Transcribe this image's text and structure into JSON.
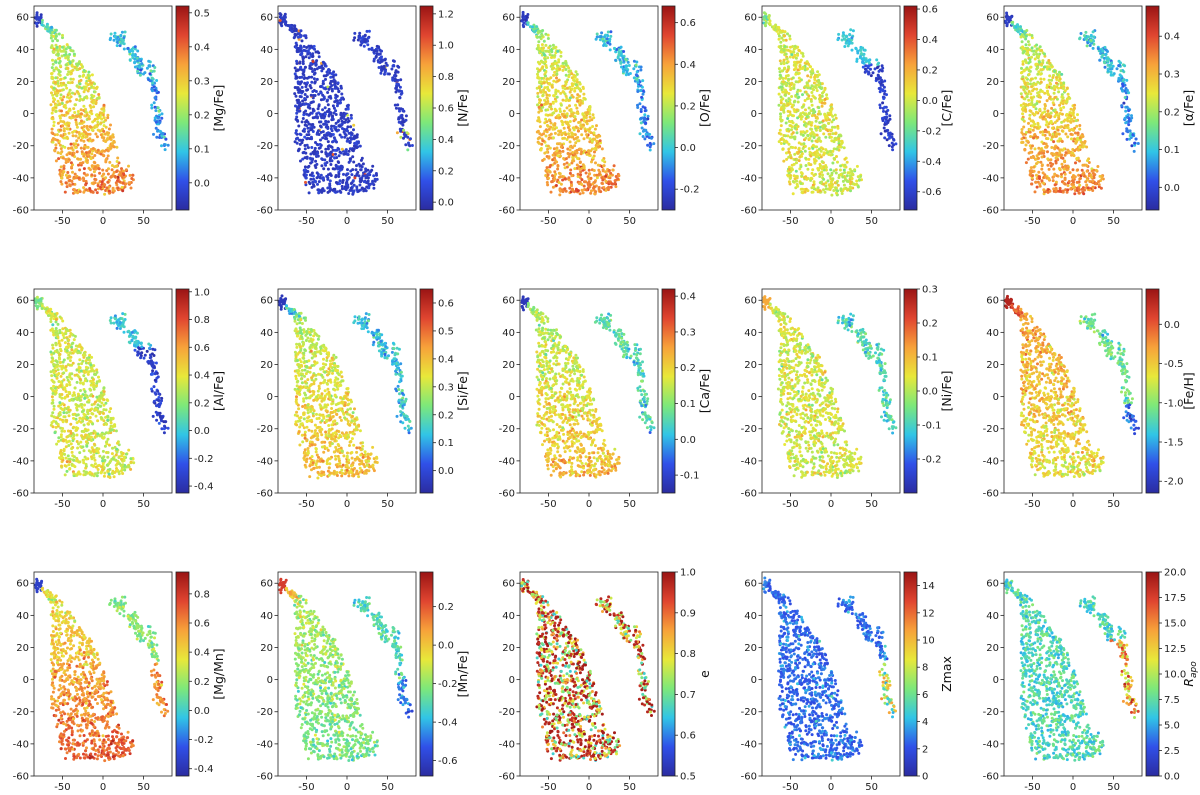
{
  "figure": {
    "layout": "3 rows x 5 columns grid of t-SNE style scatter maps, each colored by a quantity",
    "colormap": "jet",
    "colormap_stops": [
      "#2b2ca0",
      "#3050e8",
      "#31c5e6",
      "#7de87a",
      "#e8e83a",
      "#f7a23a",
      "#e04530",
      "#9a1414"
    ]
  },
  "chart_data": [
    {
      "type": "scatter",
      "colorbar_label": "[Mg/Fe]",
      "clim": [
        -0.08,
        0.52
      ],
      "cb_ticks": [
        "0.0",
        "0.1",
        "0.2",
        "0.3",
        "0.4",
        "0.5"
      ],
      "cb_tick_values": [
        0,
        0.1,
        0.2,
        0.3,
        0.4,
        0.5
      ],
      "pattern": "south",
      "xlim": [
        -85,
        85
      ],
      "ylim": [
        -60,
        67
      ],
      "xticks": [
        "-50",
        "0",
        "50"
      ],
      "yticks": [
        "-60",
        "-40",
        "-20",
        "0",
        "20",
        "40",
        "60"
      ]
    },
    {
      "type": "scatter",
      "colorbar_label": "[N/Fe]",
      "clim": [
        -0.05,
        1.25
      ],
      "cb_ticks": [
        "0.0",
        "0.2",
        "0.4",
        "0.6",
        "0.8",
        "1.0",
        "1.2"
      ],
      "cb_tick_values": [
        0,
        0.2,
        0.4,
        0.6,
        0.8,
        1.0,
        1.2
      ],
      "pattern": "low",
      "xlim": [
        -85,
        85
      ],
      "ylim": [
        -60,
        67
      ],
      "xticks": [
        "-50",
        "0",
        "50"
      ],
      "yticks": [
        "-60",
        "-40",
        "-20",
        "0",
        "20",
        "40",
        "60"
      ]
    },
    {
      "type": "scatter",
      "colorbar_label": "[O/Fe]",
      "clim": [
        -0.3,
        0.68
      ],
      "cb_ticks": [
        "-0.2",
        "0.0",
        "0.2",
        "0.4",
        "0.6"
      ],
      "cb_tick_values": [
        -0.2,
        0,
        0.2,
        0.4,
        0.6
      ],
      "pattern": "south",
      "xlim": [
        -85,
        85
      ],
      "ylim": [
        -60,
        67
      ],
      "xticks": [
        "-50",
        "0",
        "50"
      ],
      "yticks": [
        "-60",
        "-40",
        "-20",
        "0",
        "20",
        "40",
        "60"
      ]
    },
    {
      "type": "scatter",
      "colorbar_label": "[C/Fe]",
      "clim": [
        -0.72,
        0.62
      ],
      "cb_ticks": [
        "-0.6",
        "-0.4",
        "-0.2",
        "0.0",
        "0.2",
        "0.4",
        "0.6"
      ],
      "cb_tick_values": [
        -0.6,
        -0.4,
        -0.2,
        0,
        0.2,
        0.4,
        0.6
      ],
      "pattern": "mid",
      "xlim": [
        -85,
        85
      ],
      "ylim": [
        -60,
        67
      ],
      "xticks": [
        "-50",
        "0",
        "50"
      ],
      "yticks": [
        "-60",
        "-40",
        "-20",
        "0",
        "20",
        "40",
        "60"
      ]
    },
    {
      "type": "scatter",
      "colorbar_label": "[α/Fe]",
      "clim": [
        -0.06,
        0.48
      ],
      "cb_ticks": [
        "0.0",
        "0.1",
        "0.2",
        "0.3",
        "0.4"
      ],
      "cb_tick_values": [
        0,
        0.1,
        0.2,
        0.3,
        0.4
      ],
      "pattern": "south",
      "xlim": [
        -85,
        85
      ],
      "ylim": [
        -60,
        67
      ],
      "xticks": [
        "-50",
        "0",
        "50"
      ],
      "yticks": [
        "-60",
        "-40",
        "-20",
        "0",
        "20",
        "40",
        "60"
      ]
    },
    {
      "type": "scatter",
      "colorbar_label": "[Al/Fe]",
      "clim": [
        -0.45,
        1.02
      ],
      "cb_ticks": [
        "-0.4",
        "-0.2",
        "0.0",
        "0.2",
        "0.4",
        "0.6",
        "0.8",
        "1.0"
      ],
      "cb_tick_values": [
        -0.4,
        -0.2,
        0,
        0.2,
        0.4,
        0.6,
        0.8,
        1.0
      ],
      "pattern": "mid",
      "xlim": [
        -85,
        85
      ],
      "ylim": [
        -60,
        67
      ],
      "xticks": [
        "-50",
        "0",
        "50"
      ],
      "yticks": [
        "-60",
        "-40",
        "-20",
        "0",
        "20",
        "40",
        "60"
      ]
    },
    {
      "type": "scatter",
      "colorbar_label": "[Si/Fe]",
      "clim": [
        -0.08,
        0.65
      ],
      "cb_ticks": [
        "0.0",
        "0.1",
        "0.2",
        "0.3",
        "0.4",
        "0.5",
        "0.6"
      ],
      "cb_tick_values": [
        0,
        0.1,
        0.2,
        0.3,
        0.4,
        0.5,
        0.6
      ],
      "pattern": "midlow",
      "xlim": [
        -85,
        85
      ],
      "ylim": [
        -60,
        67
      ],
      "xticks": [
        "-50",
        "0",
        "50"
      ],
      "yticks": [
        "-60",
        "-40",
        "-20",
        "0",
        "20",
        "40",
        "60"
      ]
    },
    {
      "type": "scatter",
      "colorbar_label": "[Ca/Fe]",
      "clim": [
        -0.15,
        0.42
      ],
      "cb_ticks": [
        "-0.1",
        "0.0",
        "0.1",
        "0.2",
        "0.3",
        "0.4"
      ],
      "cb_tick_values": [
        -0.1,
        0,
        0.1,
        0.2,
        0.3,
        0.4
      ],
      "pattern": "midsouth",
      "xlim": [
        -85,
        85
      ],
      "ylim": [
        -60,
        67
      ],
      "xticks": [
        "-50",
        "0",
        "50"
      ],
      "yticks": [
        "-60",
        "-40",
        "-20",
        "0",
        "20",
        "40",
        "60"
      ]
    },
    {
      "type": "scatter",
      "colorbar_label": "[Ni/Fe]",
      "clim": [
        -0.3,
        0.3
      ],
      "cb_ticks": [
        "-0.2",
        "-0.1",
        "0.0",
        "0.1",
        "0.2",
        "0.3"
      ],
      "cb_tick_values": [
        -0.2,
        -0.1,
        0,
        0.1,
        0.2,
        0.3
      ],
      "pattern": "ni",
      "xlim": [
        -85,
        85
      ],
      "ylim": [
        -60,
        67
      ],
      "xticks": [
        "-50",
        "0",
        "50"
      ],
      "yticks": [
        "-60",
        "-40",
        "-20",
        "0",
        "20",
        "40",
        "60"
      ]
    },
    {
      "type": "scatter",
      "colorbar_label": "[Fe/H]",
      "clim": [
        -2.15,
        0.45
      ],
      "cb_ticks": [
        "-2.0",
        "-1.5",
        "-1.0",
        "-0.5",
        "0.0"
      ],
      "cb_tick_values": [
        -2.0,
        -1.5,
        -1.0,
        -0.5,
        0
      ],
      "pattern": "feh",
      "xlim": [
        -85,
        85
      ],
      "ylim": [
        -60,
        67
      ],
      "xticks": [
        "-50",
        "0",
        "50"
      ],
      "yticks": [
        "-60",
        "-40",
        "-20",
        "0",
        "20",
        "40",
        "60"
      ]
    },
    {
      "type": "scatter",
      "colorbar_label": "[Mg/Mn]",
      "clim": [
        -0.45,
        0.95
      ],
      "cb_ticks": [
        "-0.4",
        "-0.2",
        "0.0",
        "0.2",
        "0.4",
        "0.6",
        "0.8"
      ],
      "cb_tick_values": [
        -0.4,
        -0.2,
        0,
        0.2,
        0.4,
        0.6,
        0.8
      ],
      "pattern": "mgmn",
      "xlim": [
        -85,
        85
      ],
      "ylim": [
        -60,
        67
      ],
      "xticks": [
        "-50",
        "0",
        "50"
      ],
      "yticks": [
        "-60",
        "-40",
        "-20",
        "0",
        "20",
        "40",
        "60"
      ]
    },
    {
      "type": "scatter",
      "colorbar_label": "[Mn/Fe]",
      "clim": [
        -0.68,
        0.38
      ],
      "cb_ticks": [
        "-0.6",
        "-0.4",
        "-0.2",
        "0.0",
        "0.2"
      ],
      "cb_tick_values": [
        -0.6,
        -0.4,
        -0.2,
        0,
        0.2
      ],
      "pattern": "mnfe",
      "xlim": [
        -85,
        85
      ],
      "ylim": [
        -60,
        67
      ],
      "xticks": [
        "-50",
        "0",
        "50"
      ],
      "yticks": [
        "-60",
        "-40",
        "-20",
        "0",
        "20",
        "40",
        "60"
      ]
    },
    {
      "type": "scatter",
      "colorbar_label": "e",
      "clim": [
        0.5,
        1.0
      ],
      "cb_ticks": [
        "0.5",
        "0.6",
        "0.7",
        "0.8",
        "0.9",
        "1.0"
      ],
      "cb_tick_values": [
        0.5,
        0.6,
        0.7,
        0.8,
        0.9,
        1.0
      ],
      "pattern": "ecc",
      "xlim": [
        -85,
        85
      ],
      "ylim": [
        -60,
        67
      ],
      "xticks": [
        "-50",
        "0",
        "50"
      ],
      "yticks": [
        "-60",
        "-40",
        "-20",
        "0",
        "20",
        "40",
        "60"
      ]
    },
    {
      "type": "scatter",
      "colorbar_label": "Zmax",
      "clim": [
        0,
        15
      ],
      "cb_ticks": [
        "0",
        "2",
        "4",
        "6",
        "8",
        "10",
        "12",
        "14"
      ],
      "cb_tick_values": [
        0,
        2,
        4,
        6,
        8,
        10,
        12,
        14
      ],
      "pattern": "zmax",
      "xlim": [
        -85,
        85
      ],
      "ylim": [
        -60,
        67
      ],
      "xticks": [
        "-50",
        "0",
        "50"
      ],
      "yticks": [
        "-60",
        "-40",
        "-20",
        "0",
        "20",
        "40",
        "60"
      ]
    },
    {
      "type": "scatter",
      "colorbar_label": "R_apo",
      "clim": [
        0,
        20
      ],
      "cb_ticks": [
        "0.0",
        "2.5",
        "5.0",
        "7.5",
        "10.0",
        "12.5",
        "15.0",
        "17.5",
        "20.0"
      ],
      "cb_tick_values": [
        0,
        2.5,
        5,
        7.5,
        10,
        12.5,
        15,
        17.5,
        20
      ],
      "pattern": "rapo",
      "xlim": [
        -85,
        85
      ],
      "ylim": [
        -60,
        67
      ],
      "xticks": [
        "-50",
        "0",
        "50"
      ],
      "yticks": [
        "-60",
        "-40",
        "-20",
        "0",
        "20",
        "40",
        "60"
      ]
    }
  ]
}
